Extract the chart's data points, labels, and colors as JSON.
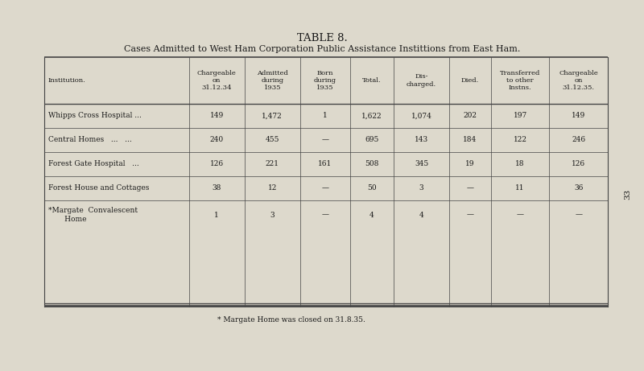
{
  "title1": "TABLE 8.",
  "title2": "Cases Admitted to West Ham Corporation Public Assistance Instittions from East Ham.",
  "page_number": "33",
  "col_headers": [
    "Institution.",
    "Chargeable\non\n31.12.34",
    "Admitted\nduring\n1935",
    "Born\nduring\n1935",
    "Total.",
    "Dis-\ncharged.",
    "Died.",
    "Transferred\nto other\nInstns.",
    "Chargeable\non\n31.12.35."
  ],
  "rows": [
    [
      "Whipps Cross Hospital ...",
      "149",
      "1,472",
      "1",
      "1,622",
      "1,074",
      "202",
      "197",
      "149"
    ],
    [
      "Central Homes   ...   ...",
      "240",
      "455",
      "—",
      "695",
      "143",
      "184",
      "122",
      "246"
    ],
    [
      "Forest Gate Hospital   ...",
      "126",
      "221",
      "161",
      "508",
      "345",
      "19",
      "18",
      "126"
    ],
    [
      "Forest House and Cottages",
      "38",
      "12",
      "—",
      "50",
      "3",
      "—",
      "11",
      "36"
    ],
    [
      "*Margate  Convalescent\n       Home",
      "1",
      "3",
      "—",
      "4",
      "4",
      "—",
      "—",
      "—"
    ]
  ],
  "footnote": "* Margate Home was closed on 31.8.35.",
  "bg_color": "#ddd9cc",
  "border_color": "#444444",
  "text_color": "#1a1a1a"
}
